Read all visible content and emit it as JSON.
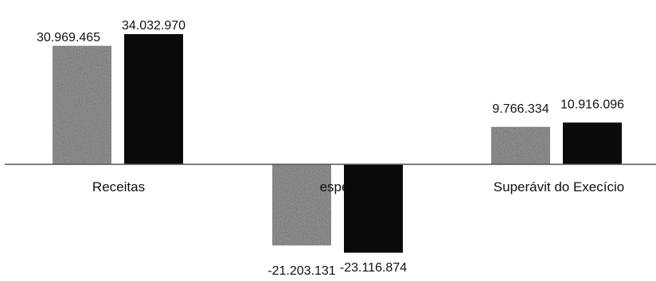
{
  "chart_data": {
    "type": "bar",
    "categories": [
      "Receitas",
      "Despesas",
      "Superávit do Execício"
    ],
    "category_labels": [
      "Receitas",
      "",
      "Superávit do Execício"
    ],
    "category_partial_label": "espe",
    "series": [
      {
        "values": [
          30969465,
          -21203131,
          9766334
        ],
        "labels": [
          "30.969.465",
          "-21.203.131",
          "9.766.334"
        ],
        "color": "#9a9a9a",
        "pattern": "speckled-grey"
      },
      {
        "values": [
          34032970,
          -23116874,
          10916096
        ],
        "labels": [
          "34.032.970",
          "-23.116.874",
          "10.916.096"
        ],
        "color": "#0a0a0a",
        "pattern": "solid-black"
      }
    ],
    "ylim": [
      -25000000,
      36000000
    ],
    "grid": false,
    "legend": "none",
    "title": "",
    "xlabel": "",
    "ylabel": ""
  }
}
